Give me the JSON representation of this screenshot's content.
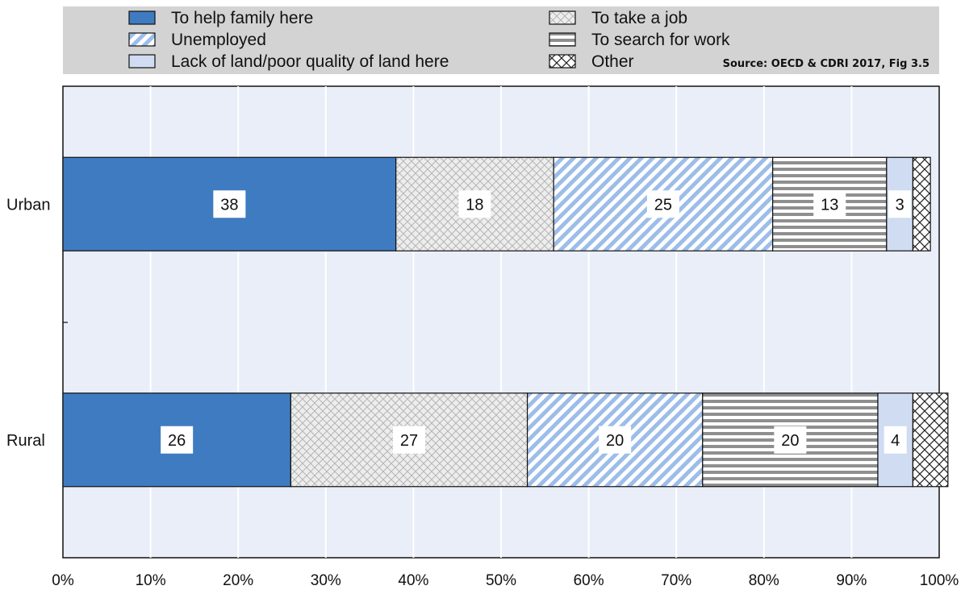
{
  "chart_data": {
    "type": "bar",
    "orientation": "horizontal",
    "stacked": true,
    "categories": [
      "Urban",
      "Rural"
    ],
    "series": [
      {
        "name": "To help family here",
        "values": [
          38,
          26
        ],
        "color": "#3f7bc1",
        "pattern": "solid"
      },
      {
        "name": "To take a job",
        "values": [
          18,
          27
        ],
        "color": "#e8e8e8",
        "pattern": "crosshatch-fine"
      },
      {
        "name": "Unemployed",
        "values": [
          25,
          20
        ],
        "color": "#a9c6ef",
        "pattern": "diagonal"
      },
      {
        "name": "To search for work",
        "values": [
          13,
          20
        ],
        "color": "#8a8a8a",
        "pattern": "horizontal"
      },
      {
        "name": "Lack of land/poor quality of land here",
        "values": [
          3,
          4
        ],
        "color": "#cfdcf2",
        "pattern": "solid"
      },
      {
        "name": "Other",
        "values": [
          2,
          4
        ],
        "color": "#ffffff",
        "pattern": "crosshatch-bold"
      }
    ],
    "data_labels": [
      [
        "38",
        "26"
      ],
      [
        "18",
        "27"
      ],
      [
        "25",
        "20"
      ],
      [
        "13",
        "20"
      ],
      [
        "3",
        "4"
      ],
      [
        "",
        ""
      ]
    ],
    "x_ticks": [
      "0%",
      "10%",
      "20%",
      "30%",
      "40%",
      "50%",
      "60%",
      "70%",
      "80%",
      "90%",
      "100%"
    ],
    "xlim": [
      0,
      100
    ],
    "source": "Source: OECD & CDRI 2017, Fig 3.5",
    "legend_placement": "top",
    "grid": true
  }
}
